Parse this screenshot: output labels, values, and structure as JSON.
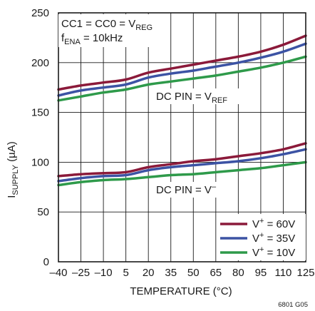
{
  "chart_data": {
    "type": "line",
    "xlabel": "TEMPERATURE (°C)",
    "ylabel": {
      "main": "I",
      "sub": "SUPPLY",
      "unit": " (µA)"
    },
    "xlim": [
      -40,
      125
    ],
    "ylim": [
      0,
      250
    ],
    "xticks": [
      -40,
      -25,
      -10,
      5,
      20,
      35,
      50,
      65,
      80,
      95,
      110,
      125
    ],
    "yticks": [
      0,
      50,
      100,
      150,
      200,
      250
    ],
    "xtick_labels": [
      "–40",
      "–25",
      "–10",
      "5",
      "20",
      "35",
      "50",
      "65",
      "80",
      "95",
      "110",
      "125"
    ],
    "grid": true,
    "legend_position": "bottom-right",
    "footer_code": "6801 G05",
    "annotations": {
      "cond1": {
        "a": "CC1 = CC0 = V",
        "sub": "REG"
      },
      "cond2": {
        "a": "f",
        "sub": "ENA",
        "b": " = 10kHz"
      },
      "group_ref": {
        "a": "DC PIN = V",
        "sub": "REF"
      },
      "group_neg": {
        "a": "DC PIN = V",
        "sup": "–"
      }
    },
    "series": [
      {
        "name": "V+ = 60V",
        "legend": {
          "a": "V",
          "sup": "+",
          "b": " = 60V"
        },
        "color": "#8b1a3a",
        "group": "VREF",
        "x": [
          -40,
          -25,
          -10,
          5,
          20,
          35,
          50,
          65,
          80,
          95,
          110,
          125
        ],
        "y": [
          173,
          177,
          180,
          183,
          190,
          194,
          198,
          202,
          206,
          211,
          218,
          227
        ]
      },
      {
        "name": "V+ = 35V",
        "legend": {
          "a": "V",
          "sup": "+",
          "b": " = 35V"
        },
        "color": "#3c53a4",
        "group": "VREF",
        "x": [
          -40,
          -25,
          -10,
          5,
          20,
          35,
          50,
          65,
          80,
          95,
          110,
          125
        ],
        "y": [
          167,
          172,
          175,
          178,
          185,
          189,
          192,
          196,
          200,
          205,
          211,
          219
        ]
      },
      {
        "name": "V+ = 10V",
        "legend": {
          "a": "V",
          "sup": "+",
          "b": " = 10V"
        },
        "color": "#2e9a4a",
        "group": "VREF",
        "x": [
          -40,
          -25,
          -10,
          5,
          20,
          35,
          50,
          65,
          80,
          95,
          110,
          125
        ],
        "y": [
          162,
          166,
          170,
          173,
          178,
          181,
          184,
          187,
          191,
          195,
          200,
          206
        ]
      },
      {
        "name": "V+ = 60V",
        "color": "#8b1a3a",
        "group": "V-",
        "x": [
          -40,
          -25,
          -10,
          5,
          20,
          35,
          50,
          65,
          80,
          95,
          110,
          125
        ],
        "y": [
          86,
          88,
          89,
          90,
          95,
          98,
          101,
          103,
          106,
          109,
          113,
          119
        ]
      },
      {
        "name": "V+ = 35V",
        "color": "#3c53a4",
        "group": "V-",
        "x": [
          -40,
          -25,
          -10,
          5,
          20,
          35,
          50,
          65,
          80,
          95,
          110,
          125
        ],
        "y": [
          81,
          84,
          86,
          87,
          92,
          95,
          97,
          99,
          101,
          104,
          108,
          113
        ]
      },
      {
        "name": "V+ = 10V",
        "color": "#2e9a4a",
        "group": "V-",
        "x": [
          -40,
          -25,
          -10,
          5,
          20,
          35,
          50,
          65,
          80,
          95,
          110,
          125
        ],
        "y": [
          77,
          80,
          82,
          83,
          85,
          87,
          88,
          90,
          92,
          94,
          97,
          100
        ]
      }
    ]
  }
}
